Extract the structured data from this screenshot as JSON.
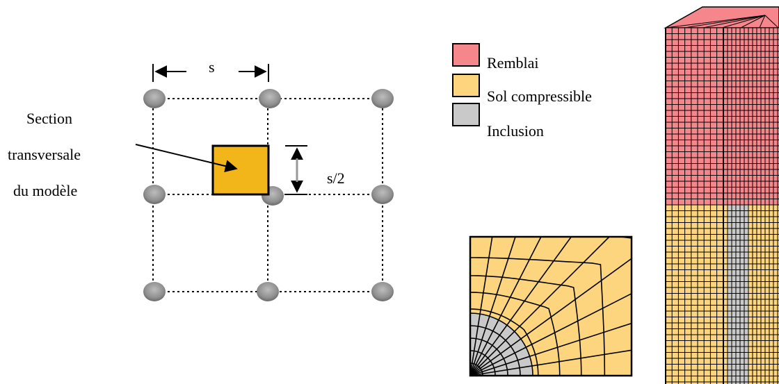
{
  "grid_diagram": {
    "spacing_label": "s",
    "half_spacing_label": "s/2",
    "section_label_lines": [
      "Section",
      "transversale",
      "du modèle"
    ]
  },
  "legend": {
    "items": [
      {
        "label": "Remblai",
        "color": "#f4868c"
      },
      {
        "label": "Sol compressible",
        "color": "#fcd57e"
      },
      {
        "label": "Inclusion",
        "color": "#c9c9c9"
      }
    ]
  },
  "colors": {
    "section_fill": "#f2b51a",
    "pile": "#8f8f8f",
    "mesh_line": "#000000"
  }
}
